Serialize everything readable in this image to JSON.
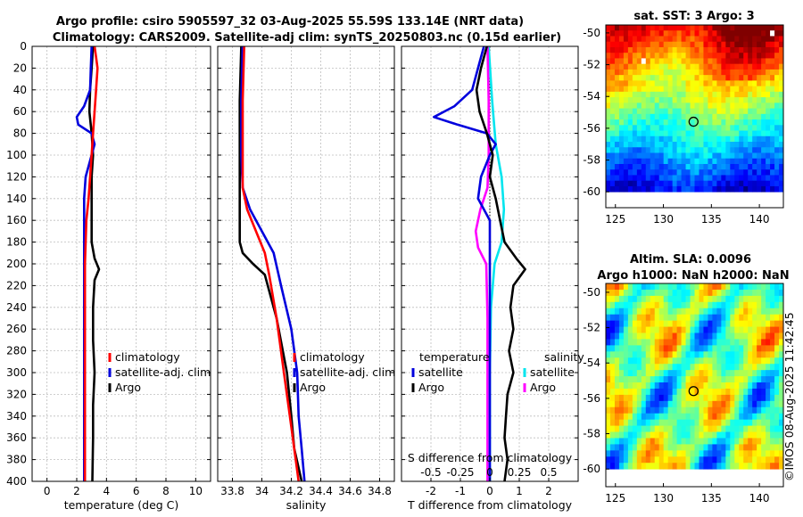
{
  "titles": {
    "line1": "Argo profile: csiro 5905597_32 03-Aug-2025 55.59S 133.14E (NRT data)",
    "line2": "Climatology: CARS2009. Satellite-adj clim: synTS_20250803.nc (0.15d earlier)"
  },
  "colors": {
    "climatology": "#ff0000",
    "satellite": "#0000dd",
    "argo": "#000000",
    "sat_salinity": "#00e5ee",
    "argo_salinity": "#ff00ff"
  },
  "depth_ticks": [
    0,
    20,
    40,
    60,
    80,
    100,
    120,
    140,
    160,
    180,
    200,
    220,
    240,
    260,
    280,
    300,
    320,
    340,
    360,
    380,
    400
  ],
  "chart_data": [
    {
      "type": "line",
      "name": "temperature-profile",
      "xlabel": "temperature (deg C)",
      "ylabel": "depth",
      "xlim": [
        -1,
        11
      ],
      "ylim": [
        400,
        0
      ],
      "xticks": [
        0,
        2,
        4,
        6,
        8,
        10
      ],
      "grid": true,
      "legend": [
        "climatology",
        "satellite-adj. clim",
        "Argo"
      ],
      "series": [
        {
          "name": "climatology",
          "color": "#ff0000",
          "points": [
            [
              3.2,
              0
            ],
            [
              3.3,
              10
            ],
            [
              3.4,
              20
            ],
            [
              3.3,
              40
            ],
            [
              3.2,
              60
            ],
            [
              3.1,
              80
            ],
            [
              3.0,
              100
            ],
            [
              2.9,
              120
            ],
            [
              2.8,
              140
            ],
            [
              2.65,
              160
            ],
            [
              2.6,
              180
            ],
            [
              2.55,
              200
            ],
            [
              2.55,
              250
            ],
            [
              2.55,
              300
            ],
            [
              2.55,
              350
            ],
            [
              2.55,
              400
            ]
          ]
        },
        {
          "name": "satellite-adj. clim",
          "color": "#0000dd",
          "points": [
            [
              3.0,
              0
            ],
            [
              2.95,
              20
            ],
            [
              2.9,
              40
            ],
            [
              2.5,
              55
            ],
            [
              2.0,
              65
            ],
            [
              2.1,
              72
            ],
            [
              3.0,
              80
            ],
            [
              3.2,
              90
            ],
            [
              3.0,
              100
            ],
            [
              2.6,
              120
            ],
            [
              2.5,
              140
            ],
            [
              2.5,
              160
            ],
            [
              2.5,
              180
            ],
            [
              2.5,
              200
            ],
            [
              2.5,
              250
            ],
            [
              2.5,
              300
            ],
            [
              2.5,
              350
            ],
            [
              2.5,
              400
            ]
          ]
        },
        {
          "name": "Argo",
          "color": "#000000",
          "points": [
            [
              3.1,
              0
            ],
            [
              3.0,
              20
            ],
            [
              2.9,
              40
            ],
            [
              2.85,
              60
            ],
            [
              3.0,
              80
            ],
            [
              3.1,
              100
            ],
            [
              3.0,
              120
            ],
            [
              3.0,
              140
            ],
            [
              3.0,
              160
            ],
            [
              3.0,
              180
            ],
            [
              3.2,
              195
            ],
            [
              3.5,
              205
            ],
            [
              3.2,
              215
            ],
            [
              3.1,
              240
            ],
            [
              3.1,
              270
            ],
            [
              3.2,
              300
            ],
            [
              3.1,
              330
            ],
            [
              3.1,
              360
            ],
            [
              3.05,
              400
            ]
          ]
        }
      ]
    },
    {
      "type": "line",
      "name": "salinity-profile",
      "xlabel": "salinity",
      "ylabel": "depth",
      "xlim": [
        33.7,
        34.9
      ],
      "ylim": [
        400,
        0
      ],
      "xticks": [
        33.8,
        34.0,
        34.2,
        34.4,
        34.6,
        34.8
      ],
      "xticklabels": [
        "33.8",
        "34",
        "34.2",
        "34.4",
        "34.6",
        "34.8"
      ],
      "grid": true,
      "legend": [
        "climatology",
        "satellite-adj. clim",
        "Argo"
      ],
      "series": [
        {
          "name": "climatology",
          "color": "#ff0000",
          "points": [
            [
              33.88,
              0
            ],
            [
              33.87,
              50
            ],
            [
              33.87,
              100
            ],
            [
              33.87,
              130
            ],
            [
              33.9,
              150
            ],
            [
              33.96,
              170
            ],
            [
              34.02,
              190
            ],
            [
              34.05,
              210
            ],
            [
              34.1,
              250
            ],
            [
              34.15,
              300
            ],
            [
              34.2,
              350
            ],
            [
              34.25,
              400
            ]
          ]
        },
        {
          "name": "satellite-adj. clim",
          "color": "#0000dd",
          "points": [
            [
              33.87,
              0
            ],
            [
              33.86,
              50
            ],
            [
              33.86,
              100
            ],
            [
              33.87,
              130
            ],
            [
              33.92,
              150
            ],
            [
              34.0,
              170
            ],
            [
              34.08,
              190
            ],
            [
              34.13,
              220
            ],
            [
              34.2,
              260
            ],
            [
              34.24,
              300
            ],
            [
              34.25,
              340
            ],
            [
              34.27,
              370
            ],
            [
              34.29,
              400
            ]
          ]
        },
        {
          "name": "Argo",
          "color": "#000000",
          "points": [
            [
              33.86,
              0
            ],
            [
              33.85,
              50
            ],
            [
              33.85,
              100
            ],
            [
              33.85,
              150
            ],
            [
              33.85,
              180
            ],
            [
              33.87,
              190
            ],
            [
              33.94,
              200
            ],
            [
              34.02,
              210
            ],
            [
              34.1,
              250
            ],
            [
              34.17,
              300
            ],
            [
              34.2,
              340
            ],
            [
              34.22,
              370
            ],
            [
              34.27,
              400
            ]
          ]
        }
      ]
    },
    {
      "type": "line",
      "name": "difference-from-climatology",
      "xlabel": "T difference from climatology",
      "xlabel2": "S difference from climatology",
      "xlim": [
        -3,
        3
      ],
      "ylim": [
        400,
        0
      ],
      "xticks": [
        -2,
        -1,
        0,
        1,
        2
      ],
      "xticks2": [
        -0.5,
        -0.25,
        0,
        0.25,
        0.5
      ],
      "xticklabels2": [
        "-0.5",
        "-0.25",
        "0",
        "0.25",
        "0.5"
      ],
      "grid": true,
      "legend_temperature_title": "temperature",
      "legend_salinity_title": "salinity",
      "legend_temperature": [
        "satellite",
        "Argo"
      ],
      "legend_salinity": [
        "satellite",
        "Argo"
      ],
      "series": [
        {
          "name": "T satellite",
          "color": "#0000dd",
          "points": [
            [
              -0.2,
              0
            ],
            [
              -0.4,
              20
            ],
            [
              -0.6,
              40
            ],
            [
              -1.2,
              55
            ],
            [
              -1.9,
              65
            ],
            [
              -1.1,
              72
            ],
            [
              -0.1,
              80
            ],
            [
              0.2,
              90
            ],
            [
              0,
              100
            ],
            [
              -0.3,
              120
            ],
            [
              -0.4,
              140
            ],
            [
              0,
              160
            ],
            [
              0,
              200
            ],
            [
              0,
              400
            ]
          ]
        },
        {
          "name": "T Argo",
          "color": "#000000",
          "points": [
            [
              -0.1,
              0
            ],
            [
              -0.3,
              20
            ],
            [
              -0.45,
              40
            ],
            [
              -0.35,
              60
            ],
            [
              -0.1,
              80
            ],
            [
              0.1,
              100
            ],
            [
              0,
              120
            ],
            [
              0.2,
              140
            ],
            [
              0.35,
              160
            ],
            [
              0.5,
              180
            ],
            [
              0.9,
              195
            ],
            [
              1.2,
              205
            ],
            [
              0.8,
              220
            ],
            [
              0.7,
              240
            ],
            [
              0.8,
              260
            ],
            [
              0.65,
              280
            ],
            [
              0.8,
              300
            ],
            [
              0.6,
              320
            ],
            [
              0.55,
              340
            ],
            [
              0.5,
              360
            ],
            [
              0.6,
              380
            ],
            [
              0.5,
              400
            ]
          ]
        },
        {
          "name": "S satellite",
          "color": "#00e5ee",
          "points": [
            [
              -0.01,
              0
            ],
            [
              0.02,
              50
            ],
            [
              0.05,
              90
            ],
            [
              0.1,
              120
            ],
            [
              0.12,
              150
            ],
            [
              0.1,
              180
            ],
            [
              0.04,
              200
            ],
            [
              0.01,
              240
            ],
            [
              0,
              300
            ],
            [
              0,
              400
            ]
          ]
        },
        {
          "name": "S Argo",
          "color": "#ff00ff",
          "points": [
            [
              -0.02,
              0
            ],
            [
              -0.01,
              50
            ],
            [
              -0.01,
              100
            ],
            [
              -0.02,
              130
            ],
            [
              -0.08,
              150
            ],
            [
              -0.12,
              170
            ],
            [
              -0.1,
              185
            ],
            [
              -0.03,
              200
            ],
            [
              -0.02,
              250
            ],
            [
              -0.02,
              300
            ],
            [
              -0.02,
              400
            ]
          ]
        }
      ]
    },
    {
      "type": "heatmap",
      "name": "sat-sst-map",
      "title": "sat. SST: 3 Argo: 3",
      "xlim": [
        124,
        142.5
      ],
      "ylim": [
        -61,
        -49.5
      ],
      "xticks": [
        125,
        130,
        135,
        140
      ],
      "yticks": [
        -50,
        -52,
        -54,
        -56,
        -58,
        -60
      ],
      "marker": [
        133.14,
        -55.59
      ],
      "colormap": "jet"
    },
    {
      "type": "heatmap",
      "name": "altim-sla-map",
      "title": "Altim. SLA: 0.0096",
      "subtitle": "Argo h1000: NaN h2000: NaN",
      "xlim": [
        124,
        142.5
      ],
      "ylim": [
        -61,
        -49.5
      ],
      "xticks": [
        125,
        130,
        135,
        140
      ],
      "yticks": [
        -50,
        -52,
        -54,
        -56,
        -58,
        -60
      ],
      "marker": [
        133.14,
        -55.59
      ],
      "colormap": "jet"
    }
  ],
  "side_caption": "©IMOS 08-Aug-2025 11:42:45"
}
